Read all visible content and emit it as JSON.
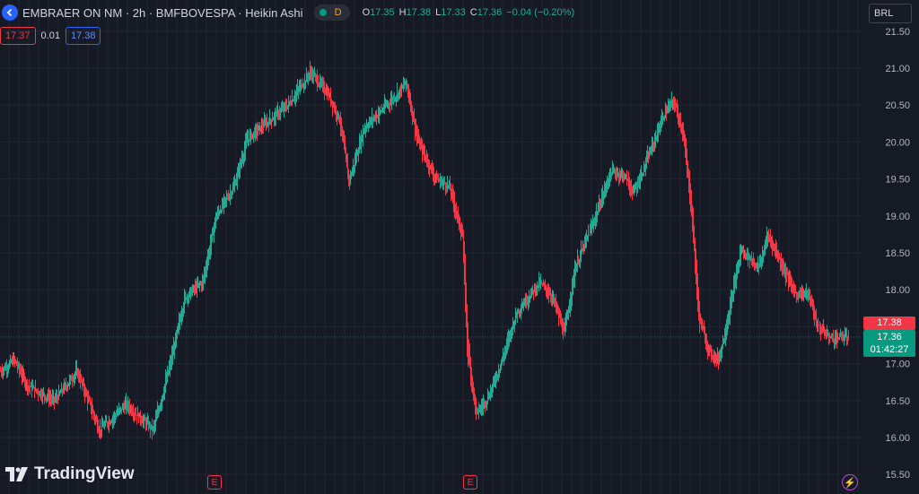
{
  "header": {
    "symbol_title": "EMBRAER ON NM · 2h · BMFBOVESPA · Heikin Ashi",
    "market_status_badge": "D",
    "ohlc": {
      "open_label": "O",
      "open": "17.35",
      "high_label": "H",
      "high": "17.38",
      "low_label": "L",
      "low": "17.33",
      "close_label": "C",
      "close": "17.36",
      "change": "−0.04 (−0.20%)"
    }
  },
  "quote": {
    "bid": "17.37",
    "spread": "0.01",
    "ask": "17.38"
  },
  "currency": "BRL",
  "price_tags": {
    "ask": "17.38",
    "last": "17.36",
    "countdown": "01:42:27"
  },
  "earnings_marker": "E",
  "logo": "TradingView",
  "colors": {
    "up": "#22ab94",
    "down": "#f23645",
    "background": "#161a25",
    "grid": "#232632",
    "accent": "#2962ff"
  },
  "chart_data": {
    "type": "candlestick",
    "style": "Heikin Ashi",
    "timeframe": "2h",
    "ylim": [
      15.5,
      21.5
    ],
    "y_ticks": [
      "21.50",
      "21.00",
      "20.50",
      "20.00",
      "19.50",
      "19.00",
      "18.50",
      "18.00",
      "17.50",
      "17.00",
      "16.50",
      "16.00",
      "15.50"
    ],
    "current_price": 17.36,
    "grid": true,
    "path_close": [
      [
        0,
        16.9
      ],
      [
        15,
        17.05
      ],
      [
        30,
        16.7
      ],
      [
        60,
        16.5
      ],
      [
        85,
        16.9
      ],
      [
        110,
        16.1
      ],
      [
        140,
        16.45
      ],
      [
        170,
        16.1
      ],
      [
        190,
        17.05
      ],
      [
        205,
        17.9
      ],
      [
        225,
        18.1
      ],
      [
        240,
        19.0
      ],
      [
        260,
        19.4
      ],
      [
        275,
        20.05
      ],
      [
        295,
        20.25
      ],
      [
        320,
        20.5
      ],
      [
        345,
        20.95
      ],
      [
        365,
        20.65
      ],
      [
        378,
        20.3
      ],
      [
        388,
        19.45
      ],
      [
        405,
        20.2
      ],
      [
        430,
        20.5
      ],
      [
        452,
        20.8
      ],
      [
        465,
        20.0
      ],
      [
        485,
        19.5
      ],
      [
        500,
        19.4
      ],
      [
        515,
        18.7
      ],
      [
        520,
        17.2
      ],
      [
        530,
        16.3
      ],
      [
        545,
        16.6
      ],
      [
        560,
        17.1
      ],
      [
        575,
        17.7
      ],
      [
        600,
        18.1
      ],
      [
        615,
        17.9
      ],
      [
        628,
        17.4
      ],
      [
        640,
        18.3
      ],
      [
        660,
        18.9
      ],
      [
        680,
        19.6
      ],
      [
        695,
        19.55
      ],
      [
        705,
        19.3
      ],
      [
        720,
        19.75
      ],
      [
        740,
        20.4
      ],
      [
        750,
        20.55
      ],
      [
        760,
        20.15
      ],
      [
        770,
        19.05
      ],
      [
        778,
        17.6
      ],
      [
        790,
        17.15
      ],
      [
        800,
        17.05
      ],
      [
        810,
        17.6
      ],
      [
        825,
        18.55
      ],
      [
        845,
        18.3
      ],
      [
        855,
        18.75
      ],
      [
        870,
        18.35
      ],
      [
        885,
        17.95
      ],
      [
        900,
        17.95
      ],
      [
        910,
        17.5
      ],
      [
        925,
        17.35
      ],
      [
        945,
        17.36
      ]
    ]
  }
}
